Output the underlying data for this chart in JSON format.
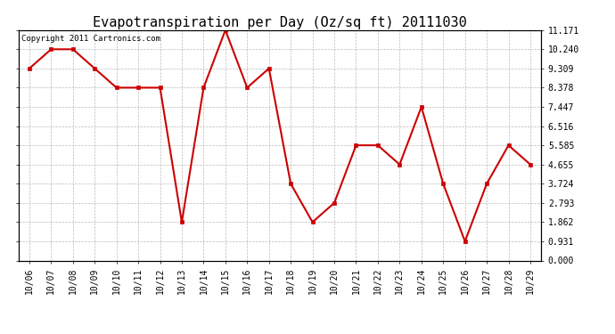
{
  "title": "Evapotranspiration per Day (Oz/sq ft) 20111030",
  "copyright_text": "Copyright 2011 Cartronics.com",
  "dates": [
    "10/06",
    "10/07",
    "10/08",
    "10/09",
    "10/10",
    "10/11",
    "10/12",
    "10/13",
    "10/14",
    "10/15",
    "10/16",
    "10/17",
    "10/18",
    "10/19",
    "10/20",
    "10/21",
    "10/22",
    "10/23",
    "10/24",
    "10/25",
    "10/26",
    "10/27",
    "10/28",
    "10/29"
  ],
  "values": [
    9.309,
    10.24,
    10.24,
    9.309,
    8.378,
    8.378,
    8.378,
    1.862,
    8.378,
    11.171,
    8.378,
    9.309,
    3.724,
    1.862,
    2.793,
    5.585,
    5.585,
    4.655,
    7.447,
    3.724,
    0.931,
    3.724,
    5.585,
    4.655
  ],
  "yticks": [
    0.0,
    0.931,
    1.862,
    2.793,
    3.724,
    4.655,
    5.585,
    6.516,
    7.447,
    8.378,
    9.309,
    10.24,
    11.171
  ],
  "ylim": [
    0.0,
    11.171
  ],
  "line_color": "#cc0000",
  "marker_color": "#cc0000",
  "marker": "s",
  "marker_size": 2.5,
  "line_width": 1.5,
  "bg_color": "#ffffff",
  "grid_color": "#bbbbbb",
  "title_fontsize": 11,
  "tick_fontsize": 7,
  "copyright_fontsize": 6.5
}
